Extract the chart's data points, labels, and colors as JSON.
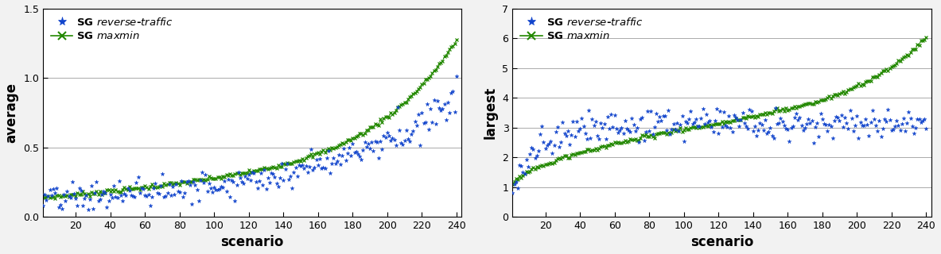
{
  "left": {
    "ylabel": "average",
    "xlabel": "scenario",
    "xlim": [
      1,
      243
    ],
    "ylim": [
      0.0,
      1.5
    ],
    "yticks": [
      0.0,
      0.5,
      1.0,
      1.5
    ],
    "xticks": [
      20,
      40,
      60,
      80,
      100,
      120,
      140,
      160,
      180,
      200,
      220,
      240
    ],
    "color_blue": "#1144cc",
    "color_green": "#228800"
  },
  "right": {
    "ylabel": "largest",
    "xlabel": "scenario",
    "xlim": [
      1,
      243
    ],
    "ylim": [
      0.0,
      7.0
    ],
    "yticks": [
      0,
      1,
      2,
      3,
      4,
      5,
      6,
      7
    ],
    "xticks": [
      20,
      40,
      60,
      80,
      100,
      120,
      140,
      160,
      180,
      200,
      220,
      240
    ],
    "color_blue": "#1144cc",
    "color_green": "#228800"
  },
  "background_color": "#f2f2f2",
  "n_scenarios": 240
}
